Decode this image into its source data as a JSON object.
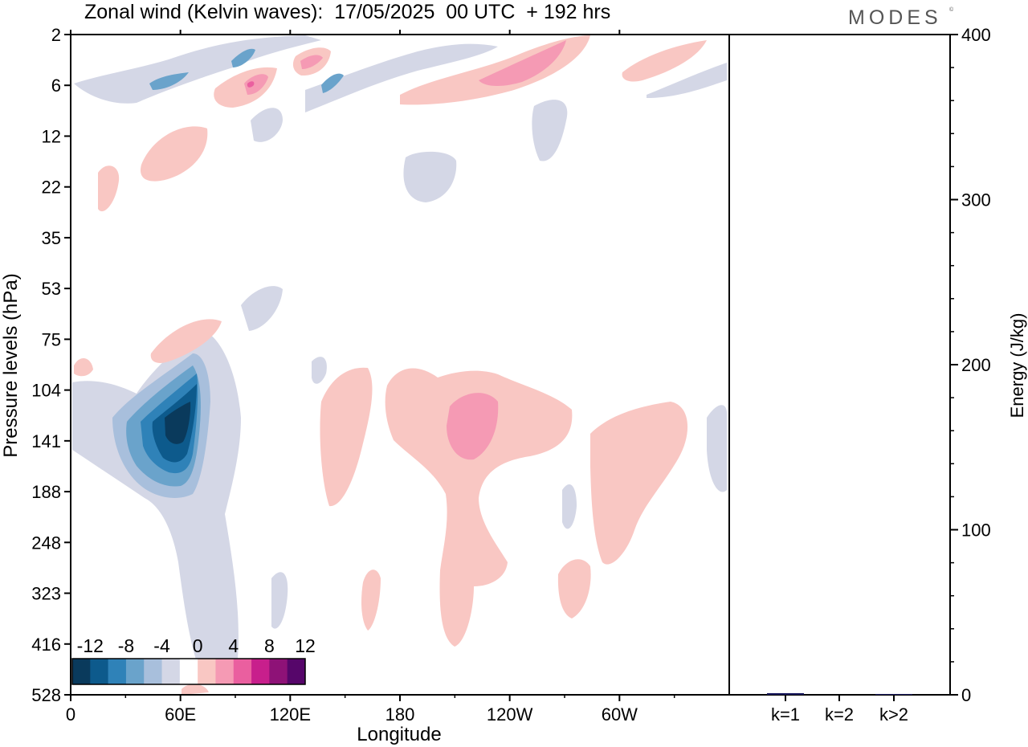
{
  "title": "Zonal wind (Kelvin waves):  17/05/2025  00 UTC  + 192 hrs",
  "brand": "MODES",
  "brand_mark": "©",
  "colors": {
    "scale": [
      "#0a3a5c",
      "#0d5a8c",
      "#2f82b8",
      "#6aa3cb",
      "#a8bfdc",
      "#d4d7e6",
      "#ffffff",
      "#f9c7c3",
      "#f59ab4",
      "#ea5f9f",
      "#c81f8c",
      "#8e1277",
      "#56066a"
    ],
    "frame": "#000000",
    "bar": "#1a1a5e"
  },
  "chart_data": [
    {
      "type": "heatmap",
      "title": "Zonal wind (Kelvin waves):  17/05/2025  00 UTC  + 192 hrs",
      "xlabel": "Longitude",
      "ylabel": "Pressure levels (hPa)",
      "x_ticks": [
        "0",
        "60E",
        "120E",
        "180",
        "120W",
        "60W"
      ],
      "x_tick_degrees": [
        0,
        60,
        120,
        180,
        240,
        300
      ],
      "xlim": [
        0,
        360
      ],
      "y_levels_hPa": [
        2,
        6,
        12,
        22,
        35,
        53,
        75,
        104,
        141,
        188,
        248,
        323,
        416,
        528
      ],
      "colorbar": {
        "labels": [
          "-12",
          "-8",
          "-4",
          "0",
          "4",
          "8",
          "12"
        ],
        "bounds": [
          -14,
          -12,
          -10,
          -8,
          -6,
          -4,
          -2,
          2,
          4,
          6,
          8,
          10,
          12,
          14
        ]
      },
      "features": [
        {
          "sign": "negative",
          "lon": 56,
          "level_hPa": 130,
          "peak_ms": -14
        },
        {
          "sign": "positive",
          "lon": 216,
          "level_hPa": 130,
          "peak_ms": 6
        },
        {
          "sign": "positive",
          "lon": 248,
          "level_hPa": 5,
          "peak_ms": 6
        },
        {
          "sign": "positive",
          "lon": 98,
          "level_hPa": 6,
          "peak_ms": 8
        },
        {
          "sign": "negative",
          "lon": 93,
          "level_hPa": 4,
          "peak_ms": -6
        },
        {
          "sign": "negative",
          "lon": 45,
          "level_hPa": 6,
          "peak_ms": -6
        }
      ]
    },
    {
      "type": "bar",
      "categories": [
        "k=1",
        "k=2",
        "k>2"
      ],
      "values": [
        1,
        0,
        0.5
      ],
      "ylabel": "Energy (J/kg)",
      "ylim": [
        0,
        400
      ],
      "y_ticks": [
        "0",
        "100",
        "200",
        "300",
        "400"
      ]
    }
  ]
}
